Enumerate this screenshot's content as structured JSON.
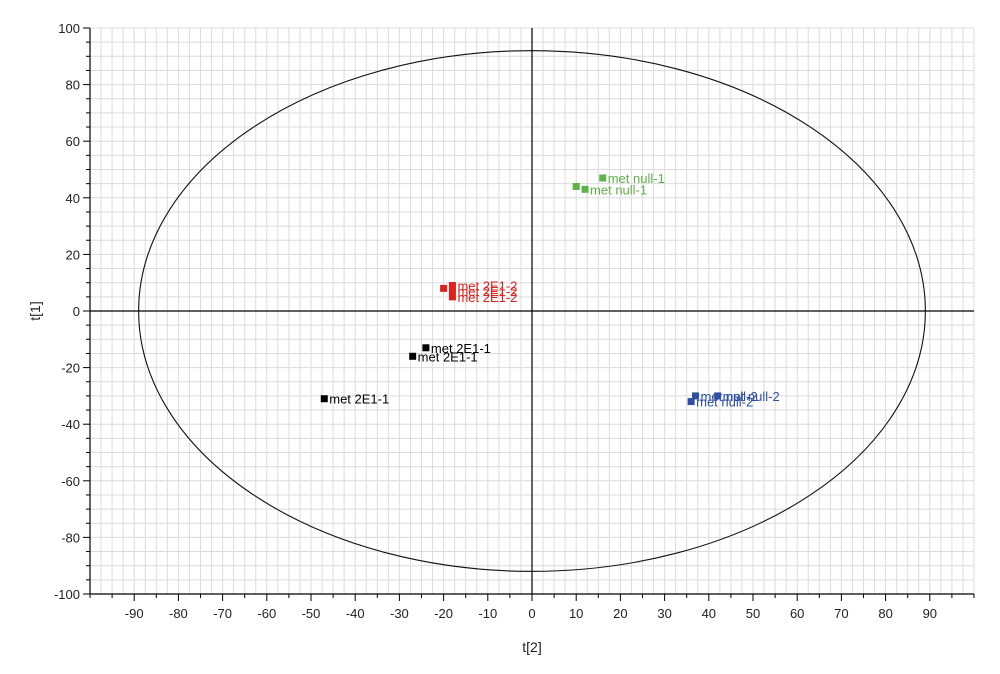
{
  "chart_data": {
    "type": "scatter",
    "xlabel": "t[2]",
    "ylabel": "t[1]",
    "xlim": [
      -100,
      100
    ],
    "ylim": [
      -100,
      100
    ],
    "x_ticks": [
      -90,
      -80,
      -70,
      -60,
      -50,
      -40,
      -30,
      -20,
      -10,
      0,
      10,
      20,
      30,
      40,
      50,
      60,
      70,
      80,
      90
    ],
    "y_ticks": [
      -100,
      -80,
      -60,
      -40,
      -20,
      0,
      20,
      40,
      60,
      80,
      100
    ],
    "grid": true,
    "hotelling_ellipse": {
      "semi_axis_x": 89,
      "semi_axis_y": 92
    },
    "series": [
      {
        "color": "#000000",
        "points": [
          {
            "x": -24,
            "y": -13,
            "label": "met 2E1-1"
          },
          {
            "x": -27,
            "y": -16,
            "label": "met 2E1-1"
          },
          {
            "x": -47,
            "y": -31,
            "label": "met 2E1-1"
          }
        ]
      },
      {
        "color": "#e0201c",
        "points": [
          {
            "x": -18,
            "y": 9,
            "label": "met 2E1-2"
          },
          {
            "x": -20,
            "y": 8,
            "label": ""
          },
          {
            "x": -18,
            "y": 7,
            "label": "met 2E1-2"
          },
          {
            "x": -18,
            "y": 5,
            "label": "met 2E1-2"
          }
        ]
      },
      {
        "color": "#5fb14a",
        "points": [
          {
            "x": 16,
            "y": 47,
            "label": "met null-1"
          },
          {
            "x": 10,
            "y": 44,
            "label": ""
          },
          {
            "x": 12,
            "y": 43,
            "label": "met null-1"
          }
        ]
      },
      {
        "color": "#2e4fa3",
        "points": [
          {
            "x": 37,
            "y": -30,
            "label": "met null-2"
          },
          {
            "x": 42,
            "y": -30,
            "label": "met null-2"
          },
          {
            "x": 36,
            "y": -32,
            "label": "met null-2"
          }
        ]
      }
    ]
  }
}
